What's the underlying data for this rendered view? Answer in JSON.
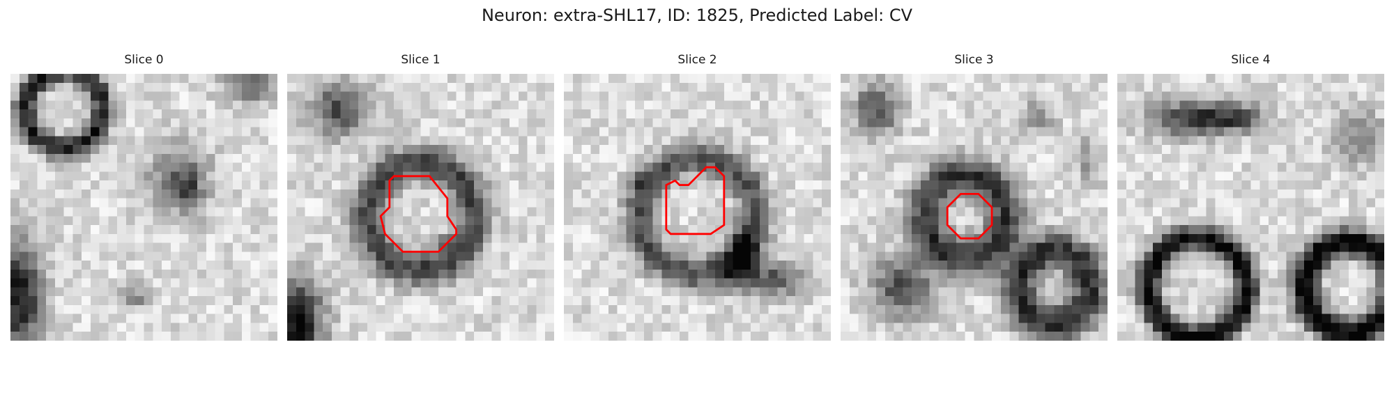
{
  "figure": {
    "title": "Neuron: extra-SHL17, ID: 1825, Predicted Label: CV",
    "contour_color": "#ff0000"
  },
  "slices": [
    {
      "label": "Slice 0",
      "has_contour": false
    },
    {
      "label": "Slice 1",
      "has_contour": true
    },
    {
      "label": "Slice 2",
      "has_contour": true
    },
    {
      "label": "Slice 3",
      "has_contour": true
    },
    {
      "label": "Slice 4",
      "has_contour": false
    }
  ]
}
